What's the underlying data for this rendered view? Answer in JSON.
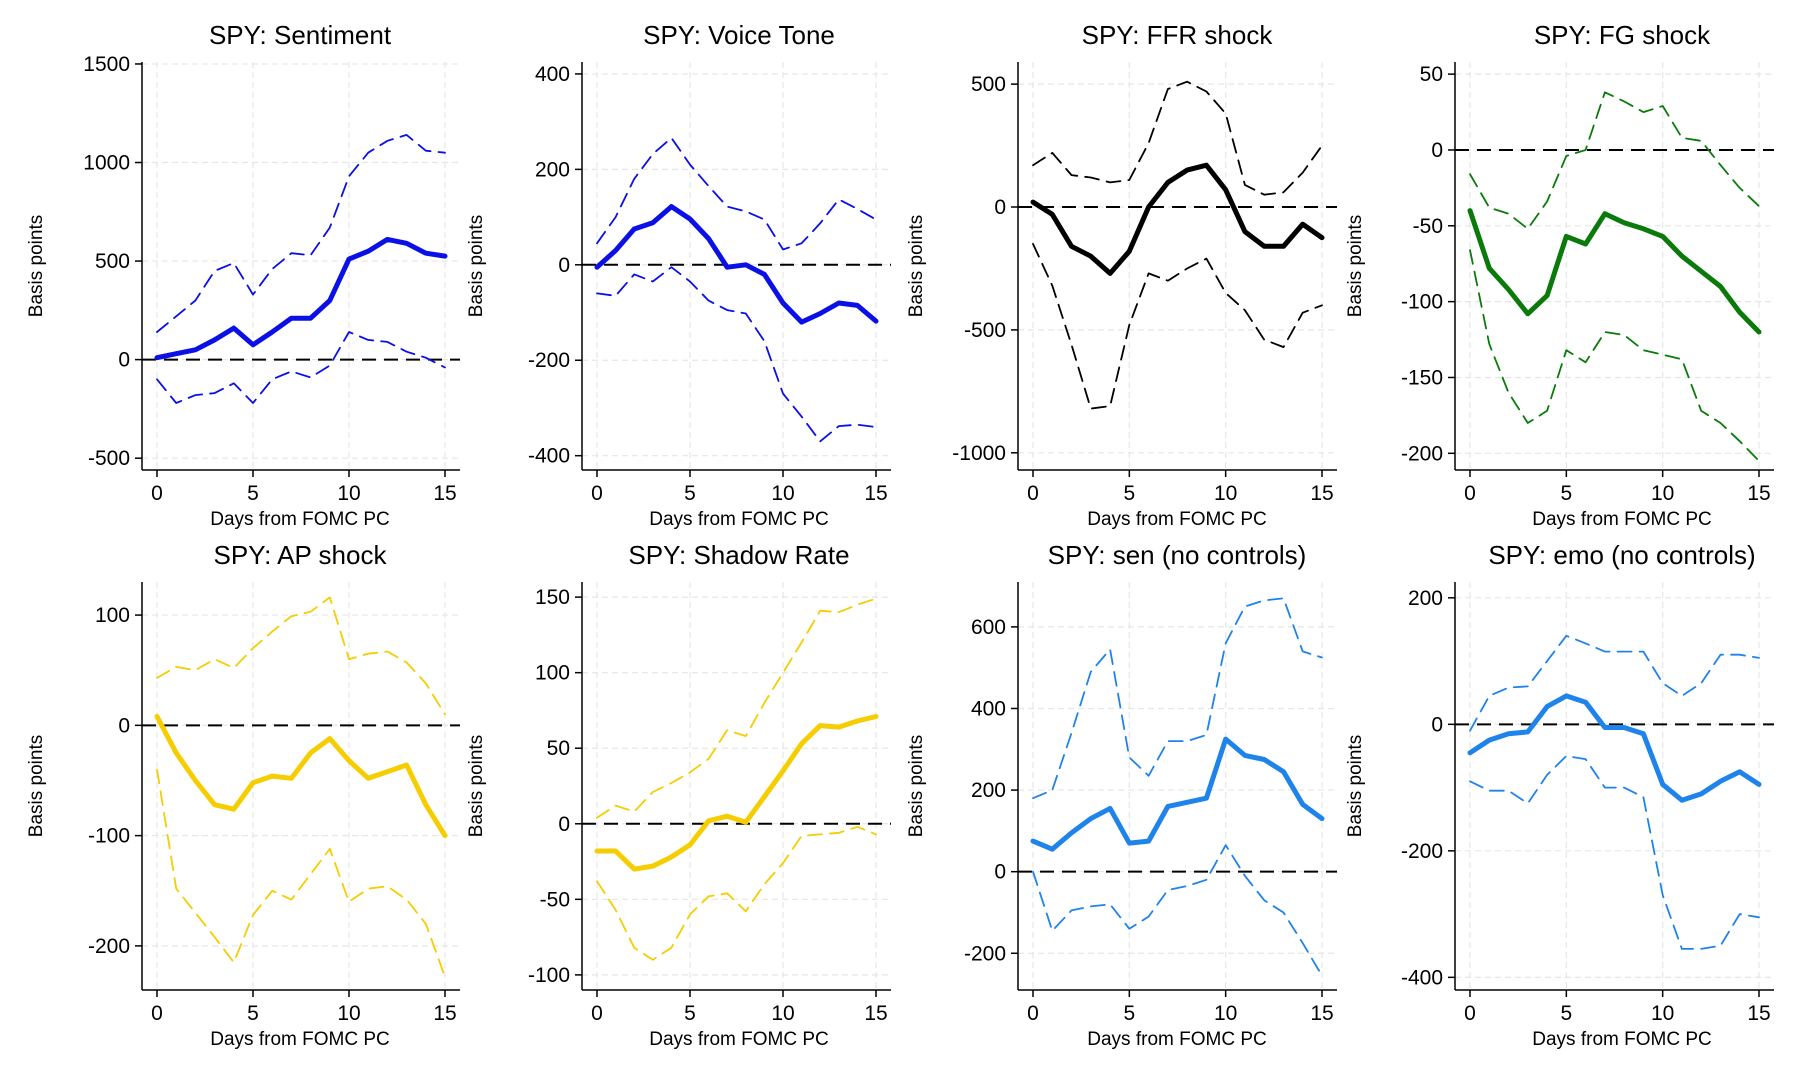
{
  "chart_data": [
    {
      "type": "line",
      "title": "SPY: Sentiment",
      "xlabel": "Days from FOMC PC",
      "ylabel": "Basis points",
      "color": "#0a10e6",
      "xlim": [
        0,
        15
      ],
      "xticks": [
        0,
        5,
        10,
        15
      ],
      "ylim": [
        -560,
        1510
      ],
      "yticks": [
        -500,
        0,
        500,
        1000,
        1500
      ],
      "x": [
        0,
        1,
        2,
        3,
        4,
        5,
        6,
        7,
        8,
        9,
        10,
        11,
        12,
        13,
        14,
        15
      ],
      "series": [
        {
          "name": "estimate",
          "values": [
            10,
            30,
            50,
            100,
            160,
            75,
            140,
            210,
            210,
            300,
            510,
            550,
            610,
            590,
            540,
            525
          ]
        },
        {
          "name": "upper",
          "values": [
            140,
            220,
            300,
            450,
            490,
            330,
            460,
            540,
            530,
            670,
            930,
            1050,
            1110,
            1140,
            1060,
            1050
          ]
        },
        {
          "name": "lower",
          "values": [
            -100,
            -220,
            -180,
            -170,
            -120,
            -220,
            -100,
            -60,
            -90,
            -30,
            140,
            100,
            90,
            40,
            10,
            -40
          ]
        }
      ]
    },
    {
      "type": "line",
      "title": "SPY: Voice Tone",
      "xlabel": "Days from FOMC PC",
      "ylabel": "Basis points",
      "color": "#0a10e6",
      "xlim": [
        0,
        15
      ],
      "xticks": [
        0,
        5,
        10,
        15
      ],
      "ylim": [
        -430,
        425
      ],
      "yticks": [
        -400,
        -200,
        0,
        200,
        400
      ],
      "x": [
        0,
        1,
        2,
        3,
        4,
        5,
        6,
        7,
        8,
        9,
        10,
        11,
        12,
        13,
        14,
        15
      ],
      "series": [
        {
          "name": "estimate",
          "values": [
            -5,
            30,
            75,
            88,
            122,
            96,
            55,
            -5,
            0,
            -20,
            -80,
            -120,
            -102,
            -80,
            -85,
            -118
          ]
        },
        {
          "name": "upper",
          "values": [
            45,
            100,
            180,
            232,
            266,
            210,
            165,
            122,
            112,
            95,
            32,
            45,
            87,
            137,
            117,
            95
          ]
        },
        {
          "name": "lower",
          "values": [
            -60,
            -65,
            -20,
            -35,
            -5,
            -35,
            -75,
            -95,
            -102,
            -160,
            -270,
            -318,
            -370,
            -338,
            -335,
            -340
          ]
        }
      ]
    },
    {
      "type": "line",
      "title": "SPY: FFR shock",
      "xlabel": "Days from FOMC PC",
      "ylabel": "Basis points",
      "color": "#000000",
      "xlim": [
        0,
        15
      ],
      "xticks": [
        0,
        5,
        10,
        15
      ],
      "ylim": [
        -1070,
        590
      ],
      "yticks": [
        -1000,
        -500,
        0,
        500
      ],
      "x": [
        0,
        1,
        2,
        3,
        4,
        5,
        6,
        7,
        8,
        9,
        10,
        11,
        12,
        13,
        14,
        15
      ],
      "series": [
        {
          "name": "estimate",
          "values": [
            20,
            -30,
            -160,
            -200,
            -270,
            -180,
            0,
            100,
            150,
            170,
            70,
            -100,
            -160,
            -160,
            -70,
            -125
          ]
        },
        {
          "name": "upper",
          "values": [
            170,
            220,
            130,
            120,
            100,
            110,
            260,
            480,
            510,
            470,
            380,
            90,
            50,
            60,
            140,
            250
          ]
        },
        {
          "name": "lower",
          "values": [
            -150,
            -320,
            -560,
            -820,
            -810,
            -480,
            -270,
            -300,
            -250,
            -210,
            -350,
            -420,
            -540,
            -570,
            -430,
            -400
          ]
        }
      ]
    },
    {
      "type": "line",
      "title": "SPY: FG shock",
      "xlabel": "Days from FOMC PC",
      "ylabel": "Basis points",
      "color": "#0a7b0a",
      "xlim": [
        0,
        15
      ],
      "xticks": [
        0,
        5,
        10,
        15
      ],
      "ylim": [
        -211,
        58
      ],
      "yticks": [
        -200,
        -150,
        -100,
        -50,
        0,
        50
      ],
      "x": [
        0,
        1,
        2,
        3,
        4,
        5,
        6,
        7,
        8,
        9,
        10,
        11,
        12,
        13,
        14,
        15
      ],
      "series": [
        {
          "name": "estimate",
          "values": [
            -40,
            -78,
            -92,
            -108,
            -96,
            -57,
            -62,
            -42,
            -48,
            -52,
            -57,
            -70,
            -80,
            -90,
            -107,
            -120
          ]
        },
        {
          "name": "upper",
          "values": [
            -16,
            -38,
            -42,
            -52,
            -34,
            -4,
            0,
            38,
            32,
            25,
            29,
            8,
            6,
            -10,
            -25,
            -37
          ]
        },
        {
          "name": "lower",
          "values": [
            -66,
            -128,
            -160,
            -180,
            -172,
            -132,
            -140,
            -120,
            -122,
            -132,
            -135,
            -138,
            -172,
            -180,
            -192,
            -205
          ]
        }
      ]
    },
    {
      "type": "line",
      "title": "SPY: AP shock",
      "xlabel": "Days from FOMC PC",
      "ylabel": "Basis points",
      "color": "#f5cd00",
      "xlim": [
        0,
        15
      ],
      "xticks": [
        0,
        5,
        10,
        15
      ],
      "ylim": [
        -240,
        130
      ],
      "yticks": [
        -200,
        -100,
        0,
        100
      ],
      "x": [
        0,
        1,
        2,
        3,
        4,
        5,
        6,
        7,
        8,
        9,
        10,
        11,
        12,
        13,
        14,
        15
      ],
      "series": [
        {
          "name": "estimate",
          "values": [
            8,
            -25,
            -50,
            -72,
            -76,
            -52,
            -46,
            -48,
            -25,
            -12,
            -32,
            -48,
            -42,
            -36,
            -72,
            -100
          ]
        },
        {
          "name": "upper",
          "values": [
            43,
            53,
            50,
            60,
            52,
            70,
            85,
            99,
            103,
            116,
            60,
            65,
            67,
            57,
            38,
            10
          ]
        },
        {
          "name": "lower",
          "values": [
            -40,
            -148,
            -170,
            -192,
            -215,
            -172,
            -150,
            -158,
            -135,
            -112,
            -160,
            -148,
            -146,
            -158,
            -180,
            -228
          ]
        }
      ]
    },
    {
      "type": "line",
      "title": "SPY: Shadow Rate",
      "xlabel": "Days from FOMC PC",
      "ylabel": "Basis points",
      "color": "#f5cd00",
      "xlim": [
        0,
        15
      ],
      "xticks": [
        0,
        5,
        10,
        15
      ],
      "ylim": [
        -110,
        160
      ],
      "yticks": [
        -100,
        -50,
        0,
        50,
        100,
        150
      ],
      "x": [
        0,
        1,
        2,
        3,
        4,
        5,
        6,
        7,
        8,
        9,
        10,
        11,
        12,
        13,
        14,
        15
      ],
      "series": [
        {
          "name": "estimate",
          "values": [
            -18,
            -18,
            -30,
            -28,
            -22,
            -14,
            2,
            5,
            1,
            18,
            35,
            53,
            65,
            64,
            68,
            71
          ]
        },
        {
          "name": "upper",
          "values": [
            4,
            12,
            8,
            21,
            27,
            34,
            43,
            62,
            58,
            80,
            100,
            120,
            141,
            140,
            145,
            149
          ]
        },
        {
          "name": "lower",
          "values": [
            -38,
            -57,
            -82,
            -90,
            -82,
            -60,
            -48,
            -46,
            -58,
            -40,
            -26,
            -8,
            -7,
            -6,
            -2,
            -7
          ]
        }
      ]
    },
    {
      "type": "line",
      "title": "SPY: sen (no controls)",
      "xlabel": "Days from FOMC PC",
      "ylabel": "Basis points",
      "color": "#1e83ea",
      "xlim": [
        0,
        15
      ],
      "xticks": [
        0,
        5,
        10,
        15
      ],
      "ylim": [
        -290,
        710
      ],
      "yticks": [
        -200,
        0,
        200,
        400,
        600
      ],
      "x": [
        0,
        1,
        2,
        3,
        4,
        5,
        6,
        7,
        8,
        9,
        10,
        11,
        12,
        13,
        14,
        15
      ],
      "series": [
        {
          "name": "estimate",
          "values": [
            75,
            55,
            95,
            130,
            155,
            70,
            75,
            160,
            170,
            180,
            325,
            285,
            275,
            245,
            165,
            130
          ]
        },
        {
          "name": "upper",
          "values": [
            180,
            200,
            340,
            490,
            545,
            280,
            235,
            320,
            320,
            335,
            560,
            650,
            665,
            670,
            540,
            525
          ]
        },
        {
          "name": "lower",
          "values": [
            0,
            -145,
            -95,
            -85,
            -80,
            -140,
            -110,
            -45,
            -35,
            -20,
            65,
            -10,
            -70,
            -100,
            -175,
            -255
          ]
        }
      ]
    },
    {
      "type": "line",
      "title": "SPY: emo (no controls)",
      "xlabel": "Days from FOMC PC",
      "ylabel": "Basis points",
      "color": "#1e83ea",
      "xlim": [
        0,
        15
      ],
      "xticks": [
        0,
        5,
        10,
        15
      ],
      "ylim": [
        -420,
        225
      ],
      "yticks": [
        -400,
        -200,
        0,
        200
      ],
      "x": [
        0,
        1,
        2,
        3,
        4,
        5,
        6,
        7,
        8,
        9,
        10,
        11,
        12,
        13,
        14,
        15
      ],
      "series": [
        {
          "name": "estimate",
          "values": [
            -45,
            -25,
            -15,
            -12,
            28,
            45,
            35,
            -5,
            -5,
            -15,
            -95,
            -120,
            -110,
            -90,
            -75,
            -95
          ]
        },
        {
          "name": "upper",
          "values": [
            -10,
            45,
            58,
            60,
            100,
            140,
            128,
            115,
            115,
            115,
            65,
            45,
            65,
            110,
            110,
            105
          ]
        },
        {
          "name": "lower",
          "values": [
            -90,
            -105,
            -105,
            -125,
            -80,
            -50,
            -55,
            -100,
            -100,
            -115,
            -270,
            -355,
            -355,
            -350,
            -300,
            -305
          ]
        }
      ]
    }
  ]
}
